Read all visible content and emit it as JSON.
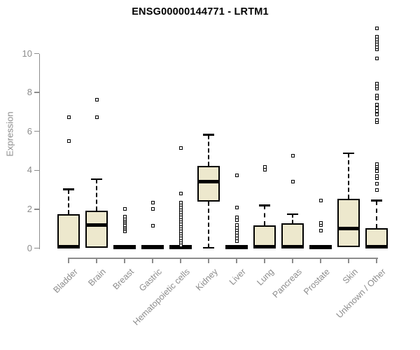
{
  "title": "ENSG00000144771 - LRTM1",
  "chart_data": {
    "type": "boxplot",
    "title": "ENSG00000144771 - LRTM1",
    "xlabel": "",
    "ylabel": "Expression",
    "ylim": [
      0,
      11.5
    ],
    "yticks": [
      0,
      2,
      4,
      6,
      8,
      10
    ],
    "grid": false,
    "legend": false,
    "box_fill_color": "#EDE8CD",
    "box_line_color": "#000000",
    "axis_color": "#8c8c8c",
    "categories": [
      "Bladder",
      "Brain",
      "Breast",
      "Gastric",
      "Hematopoietic cells",
      "Kidney",
      "Liver",
      "Lung",
      "Pancreas",
      "Prostate",
      "Skin",
      "Unknown / Other"
    ],
    "series": [
      {
        "category": "Bladder",
        "whisker_low": 0,
        "q1": 0,
        "median": 0.05,
        "q3": 1.76,
        "whisker_high": 3.02,
        "outliers": [
          5.5,
          6.73
        ]
      },
      {
        "category": "Brain",
        "whisker_low": 0,
        "q1": 0,
        "median": 1.18,
        "q3": 1.94,
        "whisker_high": 3.55,
        "outliers": [
          6.72,
          7.62
        ]
      },
      {
        "category": "Breast",
        "whisker_low": 0,
        "q1": 0,
        "median": 0.03,
        "q3": 0.08,
        "whisker_high": 0.08,
        "outliers": [
          0.88,
          0.96,
          1.04,
          1.12,
          1.2,
          1.28,
          1.36,
          1.44,
          1.52,
          1.63,
          2.02
        ]
      },
      {
        "category": "Gastric",
        "whisker_low": 0,
        "q1": 0,
        "median": 0.03,
        "q3": 0.08,
        "whisker_high": 0.08,
        "outliers": [
          1.14,
          2.02,
          2.35
        ]
      },
      {
        "category": "Hematopoietic cells",
        "whisker_low": 0,
        "q1": 0,
        "median": 0.03,
        "q3": 0.08,
        "whisker_high": 0.08,
        "outliers": [
          0.16,
          0.28,
          0.4,
          0.52,
          0.64,
          0.76,
          0.88,
          1.0,
          1.12,
          1.24,
          1.36,
          1.48,
          1.6,
          1.72,
          1.85,
          1.98,
          2.1,
          2.22,
          2.35,
          2.82,
          5.14
        ]
      },
      {
        "category": "Kidney",
        "whisker_low": 0.02,
        "q1": 2.38,
        "median": 3.4,
        "q3": 4.24,
        "whisker_high": 5.82,
        "outliers": []
      },
      {
        "category": "Liver",
        "whisker_low": 0,
        "q1": 0,
        "median": 0.03,
        "q3": 0.08,
        "whisker_high": 0.08,
        "outliers": [
          0.35,
          0.5,
          0.64,
          0.78,
          0.92,
          1.06,
          1.2,
          1.45,
          1.6,
          2.08,
          3.73
        ]
      },
      {
        "category": "Lung",
        "whisker_low": 0,
        "q1": 0,
        "median": 0.05,
        "q3": 1.18,
        "whisker_high": 2.2,
        "outliers": [
          4.02,
          4.18
        ]
      },
      {
        "category": "Pancreas",
        "whisker_low": 0,
        "q1": 0,
        "median": 0.05,
        "q3": 1.27,
        "whisker_high": 1.74,
        "outliers": [
          3.42,
          4.74
        ]
      },
      {
        "category": "Prostate",
        "whisker_low": 0,
        "q1": 0,
        "median": 0.03,
        "q3": 0.08,
        "whisker_high": 0.08,
        "outliers": [
          0.91,
          1.19,
          1.28,
          2.44
        ]
      },
      {
        "category": "Skin",
        "whisker_low": 0,
        "q1": 0.04,
        "median": 1.0,
        "q3": 2.55,
        "whisker_high": 4.88,
        "outliers": []
      },
      {
        "category": "Unknown / Other",
        "whisker_low": 0,
        "q1": 0,
        "median": 0.05,
        "q3": 1.03,
        "whisker_high": 2.44,
        "outliers": [
          2.98,
          3.3,
          3.58,
          3.7,
          3.94,
          4.12,
          4.22,
          4.33,
          6.46,
          6.57,
          6.88,
          7.05,
          7.2,
          7.38,
          7.7,
          7.84,
          8.19,
          8.32,
          8.46,
          9.75,
          10.2,
          10.33,
          10.45,
          10.6,
          10.72,
          10.85,
          11.3
        ]
      }
    ]
  }
}
